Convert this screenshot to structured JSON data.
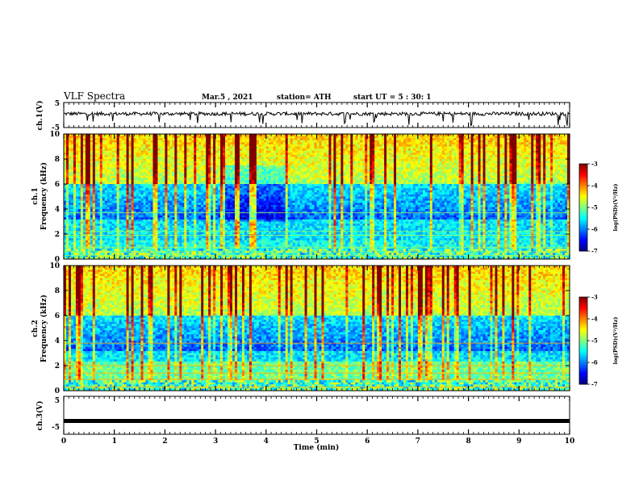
{
  "header": {
    "title": "VLF Spectra",
    "date": "Mar.5 , 2021",
    "station": "station= ATH",
    "start": "start UT = 5 : 30: 1"
  },
  "chart_data": [
    {
      "type": "line",
      "panel": "ch1-waveform",
      "ylabel": "ch.1(V)",
      "ylim": [
        -5,
        5
      ],
      "yticks": [
        "5",
        "-5"
      ],
      "xlim": [
        0,
        10
      ],
      "trend": "noisy signal oscillating near +0.5 V with short negative spikes",
      "series": [
        {
          "values": [
            0.4,
            0.6,
            0.5,
            0.7,
            0.3,
            0.5,
            0.6,
            0.4,
            0.5,
            0.6,
            0.4,
            0.5
          ]
        }
      ]
    },
    {
      "type": "heatmap",
      "panel": "ch1-spectrogram",
      "ylabel_top": "ch.1",
      "ylabel": "Frequency (kHz)",
      "ylim": [
        0,
        10
      ],
      "yticks": [
        "0",
        "2",
        "4",
        "6",
        "8",
        "10"
      ],
      "xlim": [
        0,
        10
      ],
      "colorbar": {
        "label": "log(PSD)(V²/Hz)",
        "range": [
          -7,
          -3
        ],
        "ticks": [
          "-3",
          "-4",
          "-5",
          "-6",
          "-7"
        ]
      }
    },
    {
      "type": "heatmap",
      "panel": "ch2-spectrogram",
      "ylabel_top": "ch.2",
      "ylabel": "Frequency (kHz)",
      "ylim": [
        0,
        10
      ],
      "yticks": [
        "0",
        "2",
        "4",
        "6",
        "8",
        "10"
      ],
      "xlim": [
        0,
        10
      ],
      "colorbar": {
        "label": "log(PSD)(V²/Hz)",
        "range": [
          -7,
          -3
        ],
        "ticks": [
          "-3",
          "-4",
          "-5",
          "-6",
          "-7"
        ]
      }
    },
    {
      "type": "line",
      "panel": "ch3-waveform",
      "ylabel": "ch.3(V)",
      "ylim": [
        -5,
        5
      ],
      "yticks": [
        "5",
        "-5"
      ],
      "xlim": [
        0,
        10
      ],
      "trend": "flat line at about -1.5 V",
      "series": [
        {
          "values": [
            -1.5,
            -1.5,
            -1.5,
            -1.5,
            -1.5,
            -1.5,
            -1.5,
            -1.5,
            -1.5,
            -1.5,
            -1.5
          ]
        }
      ]
    }
  ],
  "xaxis": {
    "label": "Time (min)",
    "ticks": [
      "0",
      "1",
      "2",
      "3",
      "4",
      "5",
      "6",
      "7",
      "8",
      "9",
      "10"
    ]
  },
  "colors": {
    "jet": [
      "#00007f",
      "#0000ff",
      "#007fff",
      "#00ffff",
      "#7fff7f",
      "#ffff00",
      "#ff7f00",
      "#ff0000",
      "#7f0000"
    ]
  }
}
